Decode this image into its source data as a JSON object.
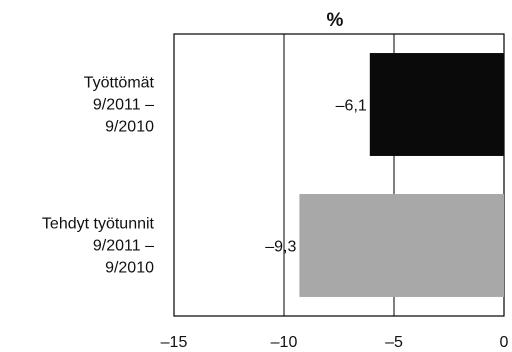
{
  "chart_data": {
    "type": "bar",
    "orientation": "horizontal",
    "title": "%",
    "categories": [
      [
        "Työttömät",
        "9/2011 –",
        "9/2010"
      ],
      [
        "Tehdyt työtunnit",
        "9/2011 –",
        "9/2010"
      ]
    ],
    "values": [
      -6.1,
      -9.3
    ],
    "data_labels": [
      "–6,1",
      "–9,3"
    ],
    "bar_colors": [
      "#0a0a0a",
      "#a8a8a8"
    ],
    "xlim": [
      -15,
      0
    ],
    "x_ticks": [
      -15,
      -10,
      -5,
      0
    ],
    "x_tick_labels": [
      "–15",
      "–10",
      "–5",
      "0"
    ],
    "xlabel": "",
    "ylabel": "",
    "grid": "vertical",
    "legend": "none"
  }
}
